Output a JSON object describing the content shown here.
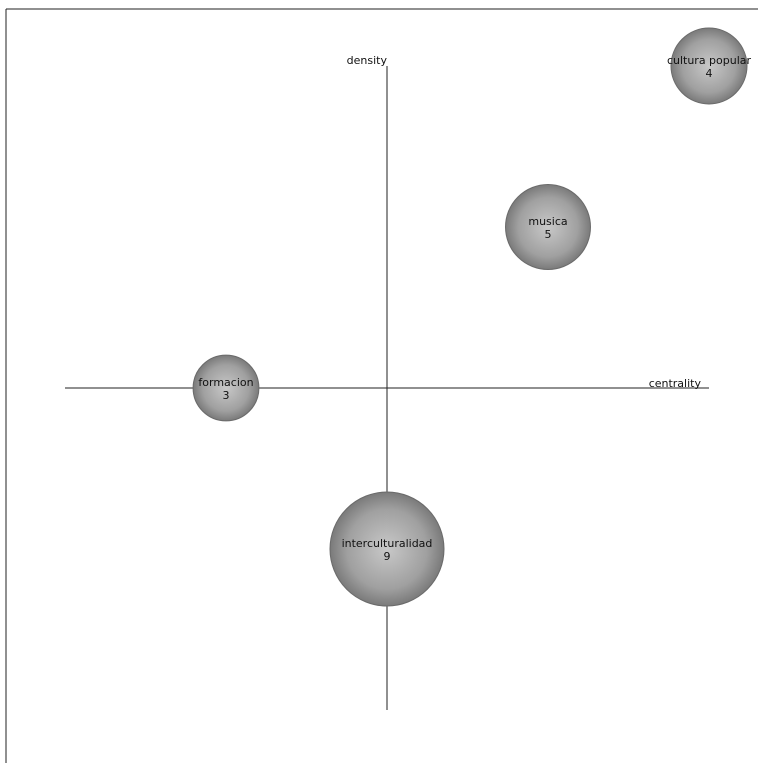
{
  "chart_data": {
    "type": "scatter",
    "xlabel": "centrality",
    "ylabel": "density",
    "xlim": [
      -1,
      1
    ],
    "ylim": [
      -1,
      1
    ],
    "grid": false,
    "bubble_color": "#8c8c8c",
    "points": [
      {
        "label": "cultura popular",
        "value": 4,
        "x": 1.0,
        "y": 1.0
      },
      {
        "label": "musica",
        "value": 5,
        "x": 0.5,
        "y": 0.5
      },
      {
        "label": "formacion",
        "value": 3,
        "x": -0.5,
        "y": 0.0
      },
      {
        "label": "interculturalidad",
        "value": 9,
        "x": 0.0,
        "y": -0.5
      }
    ]
  }
}
